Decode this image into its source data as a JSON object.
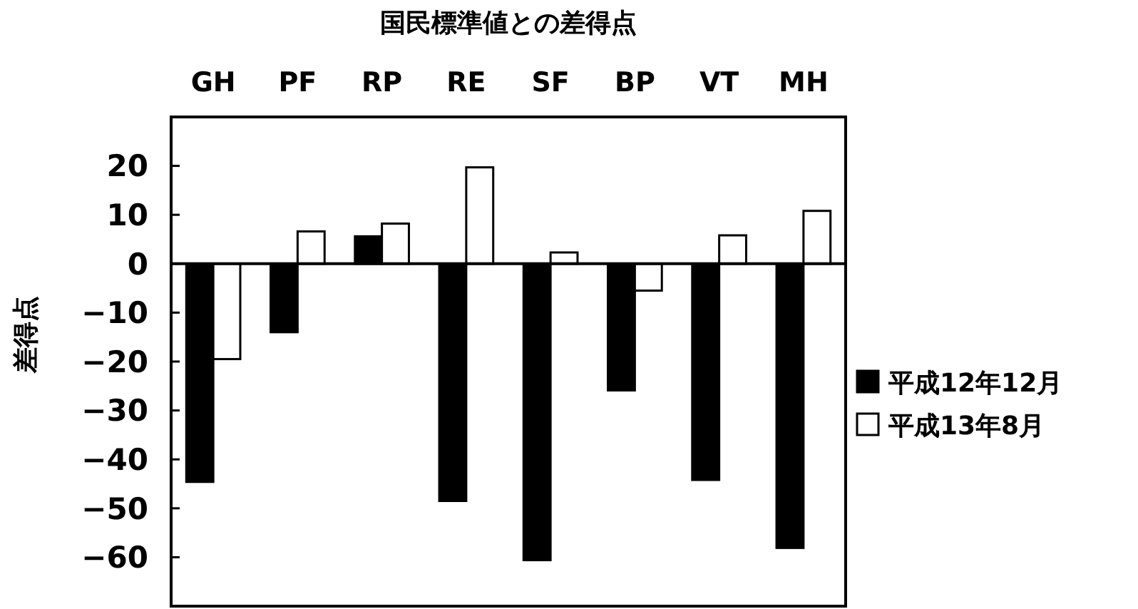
{
  "chart_data": {
    "type": "bar",
    "title": "国民標準値との差得点",
    "ylabel": "差得点",
    "categories": [
      "GH",
      "PF",
      "RP",
      "RE",
      "SF",
      "BP",
      "VT",
      "MH"
    ],
    "series": [
      {
        "name": "平成12年12月",
        "color": "#000000",
        "values": [
          -44.6,
          -14,
          5.6,
          -48.5,
          -60.6,
          -25.9,
          -44.2,
          -58.1
        ]
      },
      {
        "name": "平成13年8月",
        "color": "#ffffff",
        "values": [
          -19.5,
          6.6,
          8.2,
          19.7,
          2.3,
          -5.5,
          5.8,
          10.8
        ]
      }
    ],
    "ylim": [
      -70,
      30
    ],
    "yticks": [
      -60,
      -50,
      -40,
      -30,
      -20,
      -10,
      0,
      10,
      20
    ],
    "legend": "right"
  }
}
